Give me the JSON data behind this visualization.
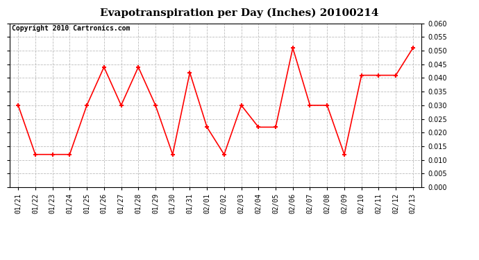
{
  "title": "Evapotranspiration per Day (Inches) 20100214",
  "copyright_text": "Copyright 2010 Cartronics.com",
  "x_labels": [
    "01/21",
    "01/22",
    "01/23",
    "01/24",
    "01/25",
    "01/26",
    "01/27",
    "01/28",
    "01/29",
    "01/30",
    "01/31",
    "02/01",
    "02/02",
    "02/03",
    "02/04",
    "02/05",
    "02/06",
    "02/07",
    "02/08",
    "02/09",
    "02/10",
    "02/11",
    "02/12",
    "02/13"
  ],
  "y_values": [
    0.03,
    0.012,
    0.012,
    0.012,
    0.03,
    0.044,
    0.03,
    0.044,
    0.03,
    0.012,
    0.042,
    0.022,
    0.012,
    0.03,
    0.022,
    0.022,
    0.051,
    0.03,
    0.03,
    0.012,
    0.041,
    0.041,
    0.041,
    0.051
  ],
  "line_color": "#ff0000",
  "marker": "+",
  "marker_size": 5,
  "marker_linewidth": 1.5,
  "line_width": 1.2,
  "background_color": "#ffffff",
  "plot_bg_color": "#ffffff",
  "grid_color": "#bbbbbb",
  "grid_style": "--",
  "ylim": [
    0.0,
    0.06
  ],
  "ytick_step": 0.005,
  "title_fontsize": 11,
  "copyright_fontsize": 7,
  "tick_fontsize": 7,
  "tick_font": "monospace"
}
